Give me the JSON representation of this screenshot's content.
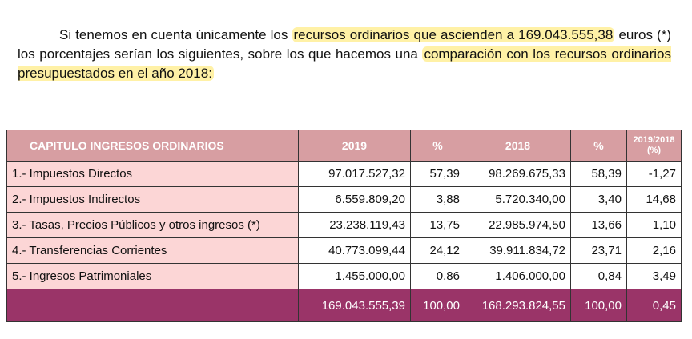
{
  "paragraph": {
    "part1": "Si tenemos en cuenta únicamente los",
    "highlight1": "recursos ordinarios que ascienden a 169.043.555,38",
    "part2": "euros (*) los porcentajes serían los siguientes, sobre los que hacemos una",
    "highlight2": "comparación con los recursos ordinarios presupuestados en el año 2018:"
  },
  "table": {
    "header": [
      "CAPITULO INGRESOS ORDINARIOS",
      "2019",
      "%",
      "2018",
      "%",
      "2019/2018 (%)"
    ],
    "rows": [
      [
        "1.- Impuestos Directos",
        "97.017.527,32",
        "57,39",
        "98.269.675,33",
        "58,39",
        "-1,27"
      ],
      [
        "2.- Impuestos Indirectos",
        "6.559.809,20",
        "3,88",
        "5.720.340,00",
        "3,40",
        "14,68"
      ],
      [
        "3.- Tasas, Precios Públicos y otros ingresos (*)",
        "23.238.119,43",
        "13,75",
        "22.985.974,50",
        "13,66",
        "1,10"
      ],
      [
        "4.- Transferencias Corrientes",
        "40.773.099,44",
        "24,12",
        "39.911.834,72",
        "23,71",
        "2,16"
      ],
      [
        "5.- Ingresos Patrimoniales",
        "1.455.000,00",
        "0,86",
        "1.406.000,00",
        "0,84",
        "3,49"
      ]
    ],
    "total": [
      "169.043.555,39",
      "100,00",
      "168.293.824,55",
      "100,00",
      "0,45"
    ]
  }
}
